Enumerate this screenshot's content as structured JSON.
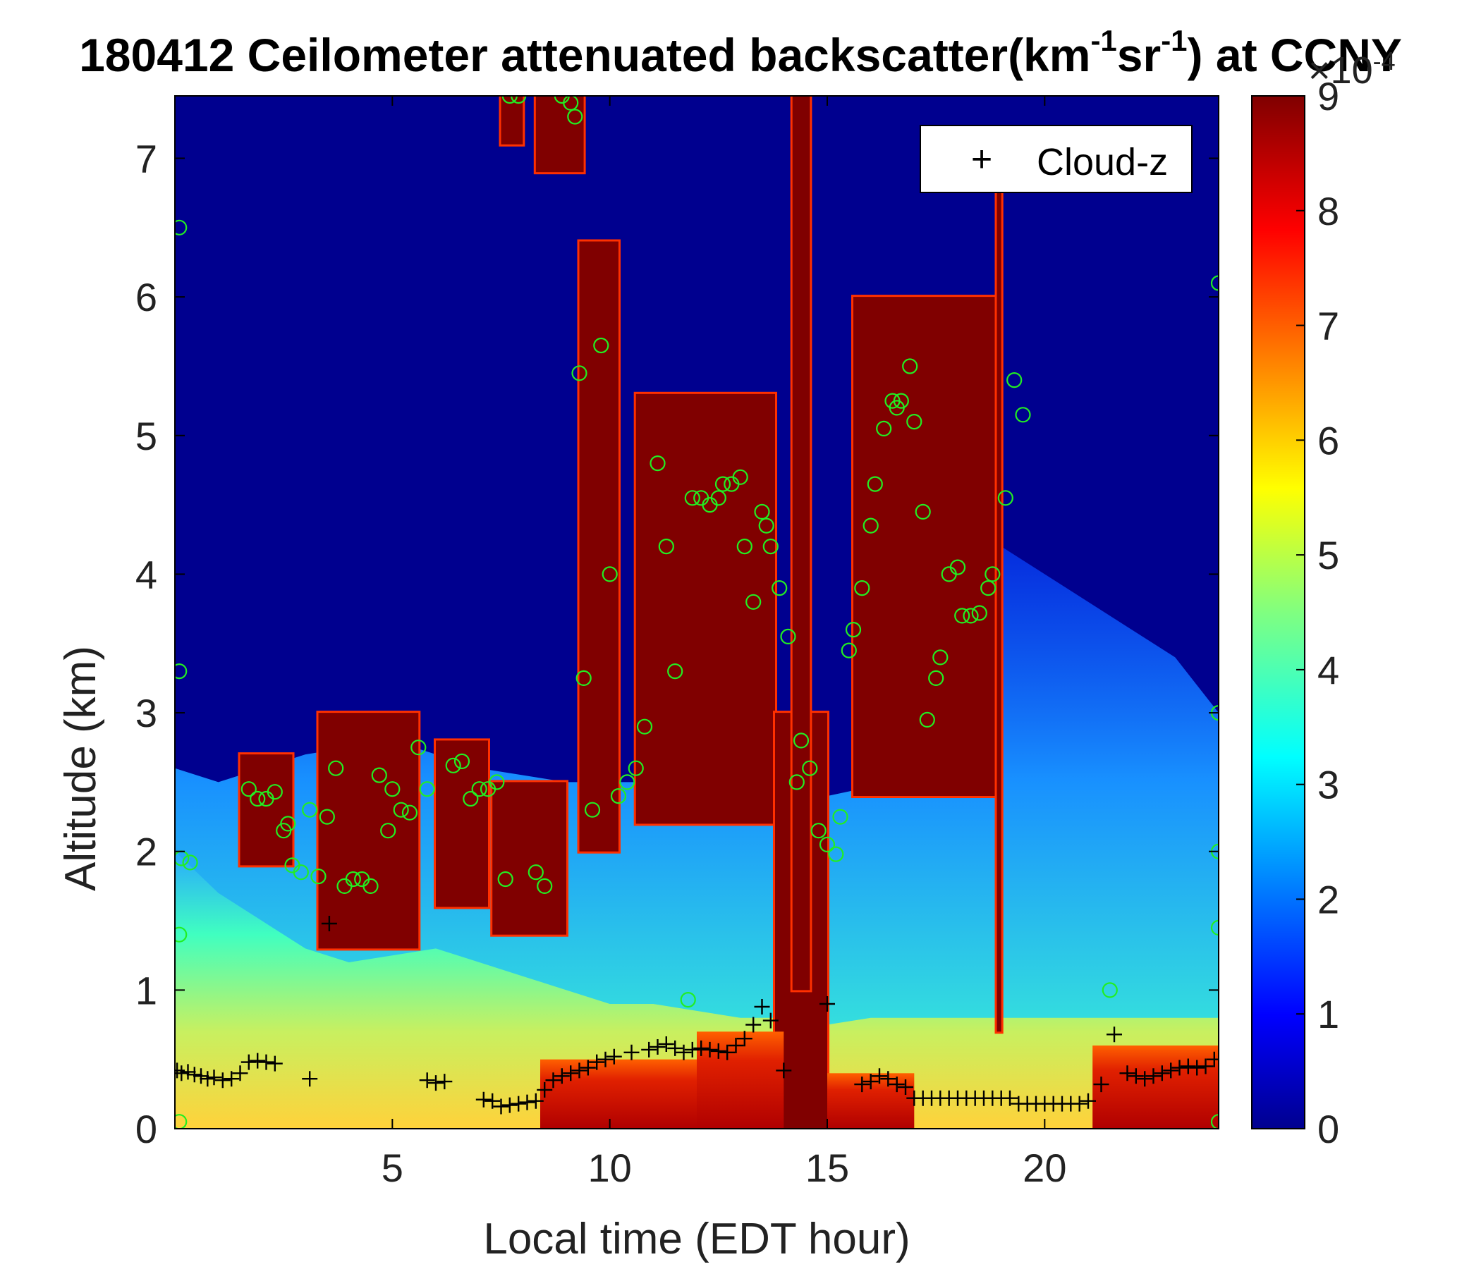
{
  "chart_data": {
    "type": "heatmap",
    "title_parts": [
      "180412 Ceilometer attenuated backscatter(km",
      "-1",
      "sr",
      "-1",
      ") at CCNY"
    ],
    "xlabel": "Local time (EDT hour)",
    "ylabel": "Altitude (km)",
    "xlim": [
      0,
      24
    ],
    "ylim": [
      0,
      7.45
    ],
    "x_ticks": [
      5,
      10,
      15,
      20
    ],
    "y_ticks": [
      0,
      1,
      2,
      3,
      4,
      5,
      6,
      7
    ],
    "colorbar": {
      "colormap": "jet",
      "range": [
        0,
        0.0009
      ],
      "ticks": [
        0,
        1,
        2,
        3,
        4,
        5,
        6,
        7,
        8,
        9
      ],
      "multiplier_base": "×10",
      "multiplier_exp": "-4"
    },
    "legend": {
      "position": "top-right",
      "entries": [
        {
          "marker": "+",
          "label": "Cloud-z"
        }
      ]
    },
    "regions": {
      "boundary_layer_top": [
        [
          0,
          2.0
        ],
        [
          1,
          1.7
        ],
        [
          2,
          1.5
        ],
        [
          3,
          1.3
        ],
        [
          4,
          1.2
        ],
        [
          5,
          1.25
        ],
        [
          6,
          1.3
        ],
        [
          7,
          1.2
        ],
        [
          8,
          1.1
        ],
        [
          9,
          1.0
        ],
        [
          10,
          0.9
        ],
        [
          11,
          0.9
        ],
        [
          12,
          0.85
        ],
        [
          13,
          0.8
        ],
        [
          14,
          0.8
        ],
        [
          15,
          0.75
        ],
        [
          16,
          0.8
        ],
        [
          17,
          0.8
        ],
        [
          18,
          0.8
        ],
        [
          19,
          0.8
        ],
        [
          20,
          0.8
        ],
        [
          21,
          0.8
        ],
        [
          22,
          0.8
        ],
        [
          23,
          0.8
        ],
        [
          24,
          0.8
        ]
      ],
      "aerosol_haze_top": [
        [
          0,
          2.6
        ],
        [
          1,
          2.5
        ],
        [
          2,
          2.6
        ],
        [
          3,
          2.7
        ],
        [
          5,
          2.8
        ],
        [
          7,
          2.6
        ],
        [
          9,
          2.5
        ],
        [
          10,
          2.5
        ],
        [
          12,
          2.5
        ],
        [
          15,
          2.4
        ],
        [
          18,
          2.6
        ],
        [
          19,
          4.2
        ],
        [
          21,
          3.8
        ],
        [
          23,
          3.4
        ],
        [
          24,
          3.0
        ]
      ],
      "dense_cloud_columns": [
        {
          "x0": 1.5,
          "x1": 2.7,
          "bottom": 1.9,
          "top": 2.7
        },
        {
          "x0": 3.3,
          "x1": 5.6,
          "bottom": 1.3,
          "top": 3.0
        },
        {
          "x0": 6.0,
          "x1": 7.2,
          "bottom": 1.6,
          "top": 2.8
        },
        {
          "x0": 7.3,
          "x1": 9.0,
          "bottom": 1.4,
          "top": 2.5
        },
        {
          "x0": 7.5,
          "x1": 8.0,
          "bottom": 7.1,
          "top": 7.45
        },
        {
          "x0": 8.3,
          "x1": 9.4,
          "bottom": 6.9,
          "top": 7.45
        },
        {
          "x0": 9.3,
          "x1": 10.2,
          "bottom": 2.0,
          "top": 6.4
        },
        {
          "x0": 10.6,
          "x1": 13.8,
          "bottom": 2.2,
          "top": 5.3
        },
        {
          "x0": 13.8,
          "x1": 15.0,
          "bottom": 0.0,
          "top": 3.0
        },
        {
          "x0": 14.2,
          "x1": 14.6,
          "bottom": 1.0,
          "top": 7.45
        },
        {
          "x0": 15.6,
          "x1": 18.9,
          "bottom": 2.4,
          "top": 6.0
        },
        {
          "x0": 18.9,
          "x1": 19.0,
          "bottom": 0.7,
          "top": 6.8
        }
      ],
      "surface_high_backscatter": [
        {
          "x0": 8.4,
          "x1": 12.0,
          "top": 0.5
        },
        {
          "x0": 12.0,
          "x1": 14.0,
          "top": 0.7
        },
        {
          "x0": 15.0,
          "x1": 17.0,
          "top": 0.4
        },
        {
          "x0": 21.1,
          "x1": 24.0,
          "top": 0.6
        }
      ]
    },
    "cloud_z_points": [
      [
        0.05,
        0.42
      ],
      [
        0.15,
        0.4
      ],
      [
        0.3,
        0.41
      ],
      [
        0.45,
        0.39
      ],
      [
        0.6,
        0.38
      ],
      [
        0.75,
        0.36
      ],
      [
        0.9,
        0.37
      ],
      [
        1.1,
        0.35
      ],
      [
        1.3,
        0.36
      ],
      [
        1.5,
        0.4
      ],
      [
        1.7,
        0.48
      ],
      [
        1.9,
        0.49
      ],
      [
        2.1,
        0.48
      ],
      [
        2.3,
        0.47
      ],
      [
        3.1,
        0.36
      ],
      [
        3.55,
        1.48
      ],
      [
        5.8,
        0.35
      ],
      [
        6.0,
        0.33
      ],
      [
        6.2,
        0.34
      ],
      [
        7.1,
        0.21
      ],
      [
        7.3,
        0.2
      ],
      [
        7.5,
        0.16
      ],
      [
        7.7,
        0.17
      ],
      [
        7.9,
        0.18
      ],
      [
        8.1,
        0.19
      ],
      [
        8.3,
        0.2
      ],
      [
        8.5,
        0.28
      ],
      [
        8.7,
        0.35
      ],
      [
        8.9,
        0.38
      ],
      [
        9.1,
        0.4
      ],
      [
        9.3,
        0.42
      ],
      [
        9.5,
        0.44
      ],
      [
        9.7,
        0.48
      ],
      [
        9.9,
        0.5
      ],
      [
        10.1,
        0.52
      ],
      [
        10.5,
        0.55
      ],
      [
        10.9,
        0.57
      ],
      [
        11.1,
        0.59
      ],
      [
        11.3,
        0.61
      ],
      [
        11.5,
        0.58
      ],
      [
        11.7,
        0.55
      ],
      [
        11.9,
        0.57
      ],
      [
        12.1,
        0.58
      ],
      [
        12.3,
        0.57
      ],
      [
        12.5,
        0.56
      ],
      [
        12.7,
        0.55
      ],
      [
        12.9,
        0.6
      ],
      [
        13.1,
        0.65
      ],
      [
        13.3,
        0.75
      ],
      [
        13.5,
        0.88
      ],
      [
        13.7,
        0.78
      ],
      [
        14.0,
        0.42
      ],
      [
        15.0,
        0.9
      ],
      [
        15.8,
        0.32
      ],
      [
        16.0,
        0.34
      ],
      [
        16.2,
        0.38
      ],
      [
        16.4,
        0.36
      ],
      [
        16.6,
        0.32
      ],
      [
        16.8,
        0.3
      ],
      [
        17.0,
        0.22
      ],
      [
        17.2,
        0.22
      ],
      [
        17.4,
        0.22
      ],
      [
        17.6,
        0.22
      ],
      [
        17.8,
        0.22
      ],
      [
        18.0,
        0.22
      ],
      [
        18.2,
        0.22
      ],
      [
        18.4,
        0.22
      ],
      [
        18.6,
        0.22
      ],
      [
        18.8,
        0.22
      ],
      [
        19.0,
        0.22
      ],
      [
        19.2,
        0.22
      ],
      [
        19.4,
        0.18
      ],
      [
        19.6,
        0.18
      ],
      [
        19.8,
        0.18
      ],
      [
        20.0,
        0.18
      ],
      [
        20.2,
        0.18
      ],
      [
        20.4,
        0.18
      ],
      [
        20.6,
        0.18
      ],
      [
        20.8,
        0.18
      ],
      [
        21.0,
        0.2
      ],
      [
        21.3,
        0.32
      ],
      [
        21.6,
        0.68
      ],
      [
        21.9,
        0.4
      ],
      [
        22.1,
        0.38
      ],
      [
        22.3,
        0.36
      ],
      [
        22.5,
        0.38
      ],
      [
        22.7,
        0.4
      ],
      [
        22.9,
        0.42
      ],
      [
        23.1,
        0.44
      ],
      [
        23.3,
        0.45
      ],
      [
        23.5,
        0.44
      ],
      [
        23.7,
        0.45
      ],
      [
        23.9,
        0.5
      ]
    ],
    "cloud_base_circles": [
      [
        0.1,
        6.5
      ],
      [
        0.1,
        3.3
      ],
      [
        0.1,
        1.4
      ],
      [
        0.1,
        0.05
      ],
      [
        0.15,
        1.95
      ],
      [
        0.35,
        1.92
      ],
      [
        1.7,
        2.45
      ],
      [
        1.9,
        2.38
      ],
      [
        2.1,
        2.38
      ],
      [
        2.3,
        2.43
      ],
      [
        2.5,
        2.15
      ],
      [
        2.6,
        2.2
      ],
      [
        2.7,
        1.9
      ],
      [
        2.9,
        1.85
      ],
      [
        3.1,
        2.3
      ],
      [
        3.3,
        1.82
      ],
      [
        3.5,
        2.25
      ],
      [
        3.7,
        2.6
      ],
      [
        3.9,
        1.75
      ],
      [
        4.1,
        1.8
      ],
      [
        4.3,
        1.8
      ],
      [
        4.5,
        1.75
      ],
      [
        4.7,
        2.55
      ],
      [
        4.9,
        2.15
      ],
      [
        5.0,
        2.45
      ],
      [
        5.2,
        2.3
      ],
      [
        5.4,
        2.28
      ],
      [
        5.6,
        2.75
      ],
      [
        5.8,
        2.45
      ],
      [
        6.4,
        2.62
      ],
      [
        6.6,
        2.65
      ],
      [
        6.8,
        2.38
      ],
      [
        7.0,
        2.45
      ],
      [
        7.2,
        2.45
      ],
      [
        7.4,
        2.5
      ],
      [
        7.6,
        1.8
      ],
      [
        7.7,
        7.45
      ],
      [
        7.9,
        7.45
      ],
      [
        8.3,
        1.85
      ],
      [
        8.5,
        1.75
      ],
      [
        8.9,
        7.45
      ],
      [
        9.1,
        7.4
      ],
      [
        9.2,
        7.3
      ],
      [
        9.3,
        5.45
      ],
      [
        9.4,
        3.25
      ],
      [
        9.6,
        2.3
      ],
      [
        9.8,
        5.65
      ],
      [
        10.0,
        4.0
      ],
      [
        10.2,
        2.4
      ],
      [
        10.4,
        2.5
      ],
      [
        10.6,
        2.6
      ],
      [
        10.8,
        2.9
      ],
      [
        11.1,
        4.8
      ],
      [
        11.3,
        4.2
      ],
      [
        11.5,
        3.3
      ],
      [
        11.8,
        0.93
      ],
      [
        11.9,
        4.55
      ],
      [
        12.1,
        4.55
      ],
      [
        12.3,
        4.5
      ],
      [
        12.5,
        4.55
      ],
      [
        12.6,
        4.65
      ],
      [
        12.8,
        4.65
      ],
      [
        13.0,
        4.7
      ],
      [
        13.1,
        4.2
      ],
      [
        13.3,
        3.8
      ],
      [
        13.5,
        4.45
      ],
      [
        13.6,
        4.35
      ],
      [
        13.7,
        4.2
      ],
      [
        13.9,
        3.9
      ],
      [
        14.1,
        3.55
      ],
      [
        14.3,
        2.5
      ],
      [
        14.4,
        2.8
      ],
      [
        14.6,
        2.6
      ],
      [
        14.8,
        2.15
      ],
      [
        15.0,
        2.05
      ],
      [
        15.2,
        1.98
      ],
      [
        15.3,
        2.25
      ],
      [
        15.5,
        3.45
      ],
      [
        15.6,
        3.6
      ],
      [
        15.8,
        3.9
      ],
      [
        16.0,
        4.35
      ],
      [
        16.1,
        4.65
      ],
      [
        16.3,
        5.05
      ],
      [
        16.5,
        5.25
      ],
      [
        16.6,
        5.2
      ],
      [
        16.7,
        5.25
      ],
      [
        16.9,
        5.5
      ],
      [
        17.0,
        5.1
      ],
      [
        17.2,
        4.45
      ],
      [
        17.3,
        2.95
      ],
      [
        17.5,
        3.25
      ],
      [
        17.6,
        3.4
      ],
      [
        17.8,
        4.0
      ],
      [
        18.0,
        4.05
      ],
      [
        18.1,
        3.7
      ],
      [
        18.3,
        3.7
      ],
      [
        18.5,
        3.72
      ],
      [
        18.7,
        3.9
      ],
      [
        18.8,
        4.0
      ],
      [
        19.1,
        4.55
      ],
      [
        19.3,
        5.4
      ],
      [
        19.5,
        5.15
      ],
      [
        21.5,
        1.0
      ],
      [
        24.0,
        6.1
      ],
      [
        24.0,
        3.0
      ],
      [
        24.0,
        2.0
      ],
      [
        24.0,
        1.45
      ],
      [
        24.0,
        0.05
      ]
    ]
  }
}
